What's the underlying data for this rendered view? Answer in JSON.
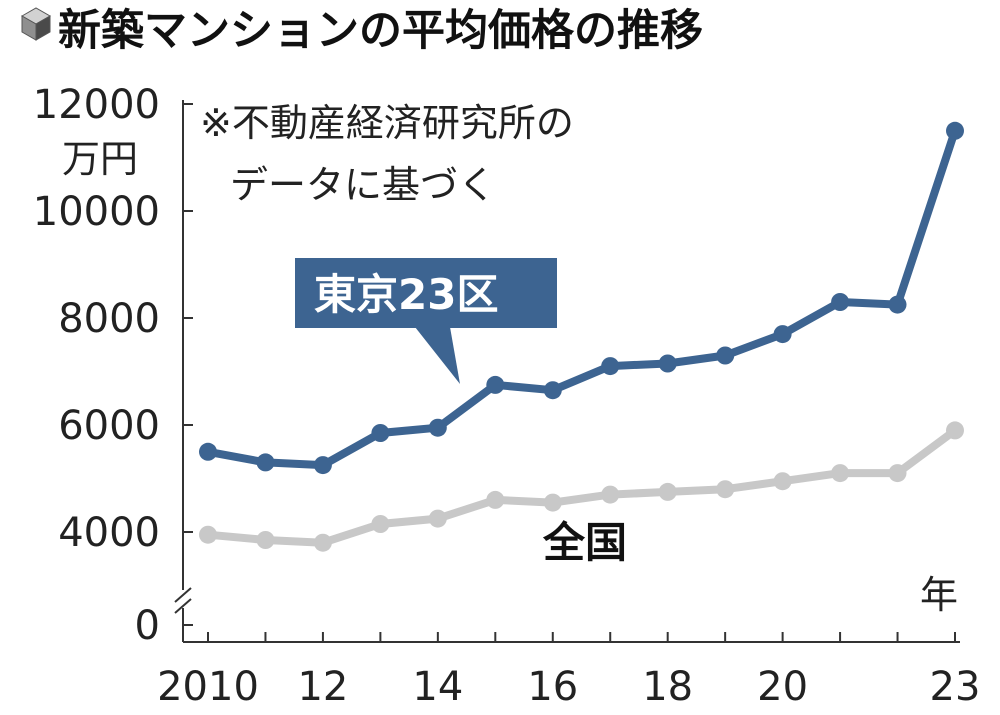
{
  "chart_data": {
    "type": "line",
    "title": "新築マンションの平均価格の推移",
    "note_line1": "※不動産経済研究所の",
    "note_line2": "データに基づく",
    "y_unit": "万円",
    "x_unit": "年",
    "ylim": [
      0,
      12000
    ],
    "y_ticks": [
      "0",
      "4000",
      "6000",
      "8000",
      "10000",
      "12000"
    ],
    "x_ticks": [
      "2010",
      "12",
      "14",
      "16",
      "18",
      "20",
      "23"
    ],
    "axis_break": true,
    "grid": false,
    "x": [
      2010,
      2011,
      2012,
      2013,
      2014,
      2015,
      2016,
      2017,
      2018,
      2019,
      2020,
      2021,
      2022,
      2023
    ],
    "series": [
      {
        "name": "東京23区",
        "color": "#3d6491",
        "label_style": "callout-box",
        "values": [
          5500,
          5300,
          5250,
          5850,
          5950,
          6750,
          6650,
          7100,
          7150,
          7300,
          7700,
          8300,
          8250,
          11500
        ]
      },
      {
        "name": "全国",
        "color": "#c8c8c8",
        "label_style": "plain",
        "values": [
          3950,
          3850,
          3800,
          4150,
          4250,
          4600,
          4550,
          4700,
          4750,
          4800,
          4950,
          5100,
          5100,
          5900
        ]
      }
    ],
    "icon": "cube-icon"
  }
}
